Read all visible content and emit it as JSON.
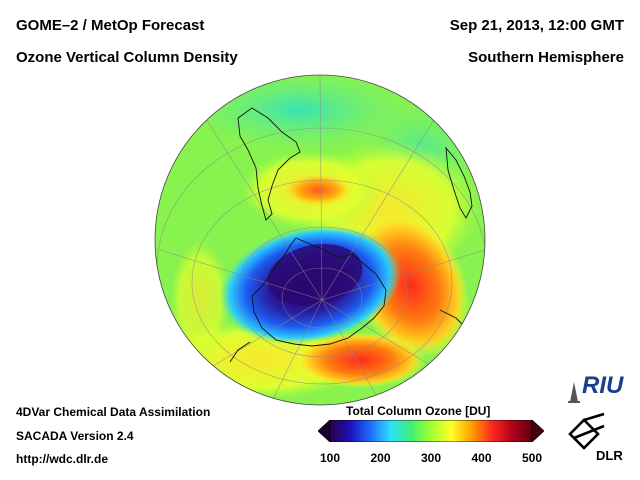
{
  "header": {
    "title_left": "GOME–2 / MetOp Forecast",
    "subtitle_left": "Ozone Vertical Column Density",
    "date": "Sep 21, 2013, 12:00 GMT",
    "region": "Southern Hemisphere"
  },
  "footer": {
    "line1": "4DVar Chemical Data Assimilation",
    "line2": "SACADA Version 2.4",
    "url": "http://wdc.dlr.de"
  },
  "colorbar": {
    "title": "Total Column Ozone [DU]",
    "min": 100,
    "max": 500,
    "ticks": [
      "100",
      "200",
      "300",
      "400",
      "500"
    ],
    "colors": [
      "#2a004f",
      "#1c10b8",
      "#1f6cff",
      "#2ee0ff",
      "#40ee78",
      "#a0ff30",
      "#ffff28",
      "#ffa000",
      "#ff2a1e",
      "#b3001a",
      "#600010"
    ]
  },
  "map": {
    "projection": "orthographic, south pole view",
    "background_color": "#88f24f",
    "ozone_hole_color": "#2a0870",
    "high_ozone_color": "#ff2a1e"
  },
  "logos": {
    "riu": "RIU",
    "dlr": "DLR"
  }
}
